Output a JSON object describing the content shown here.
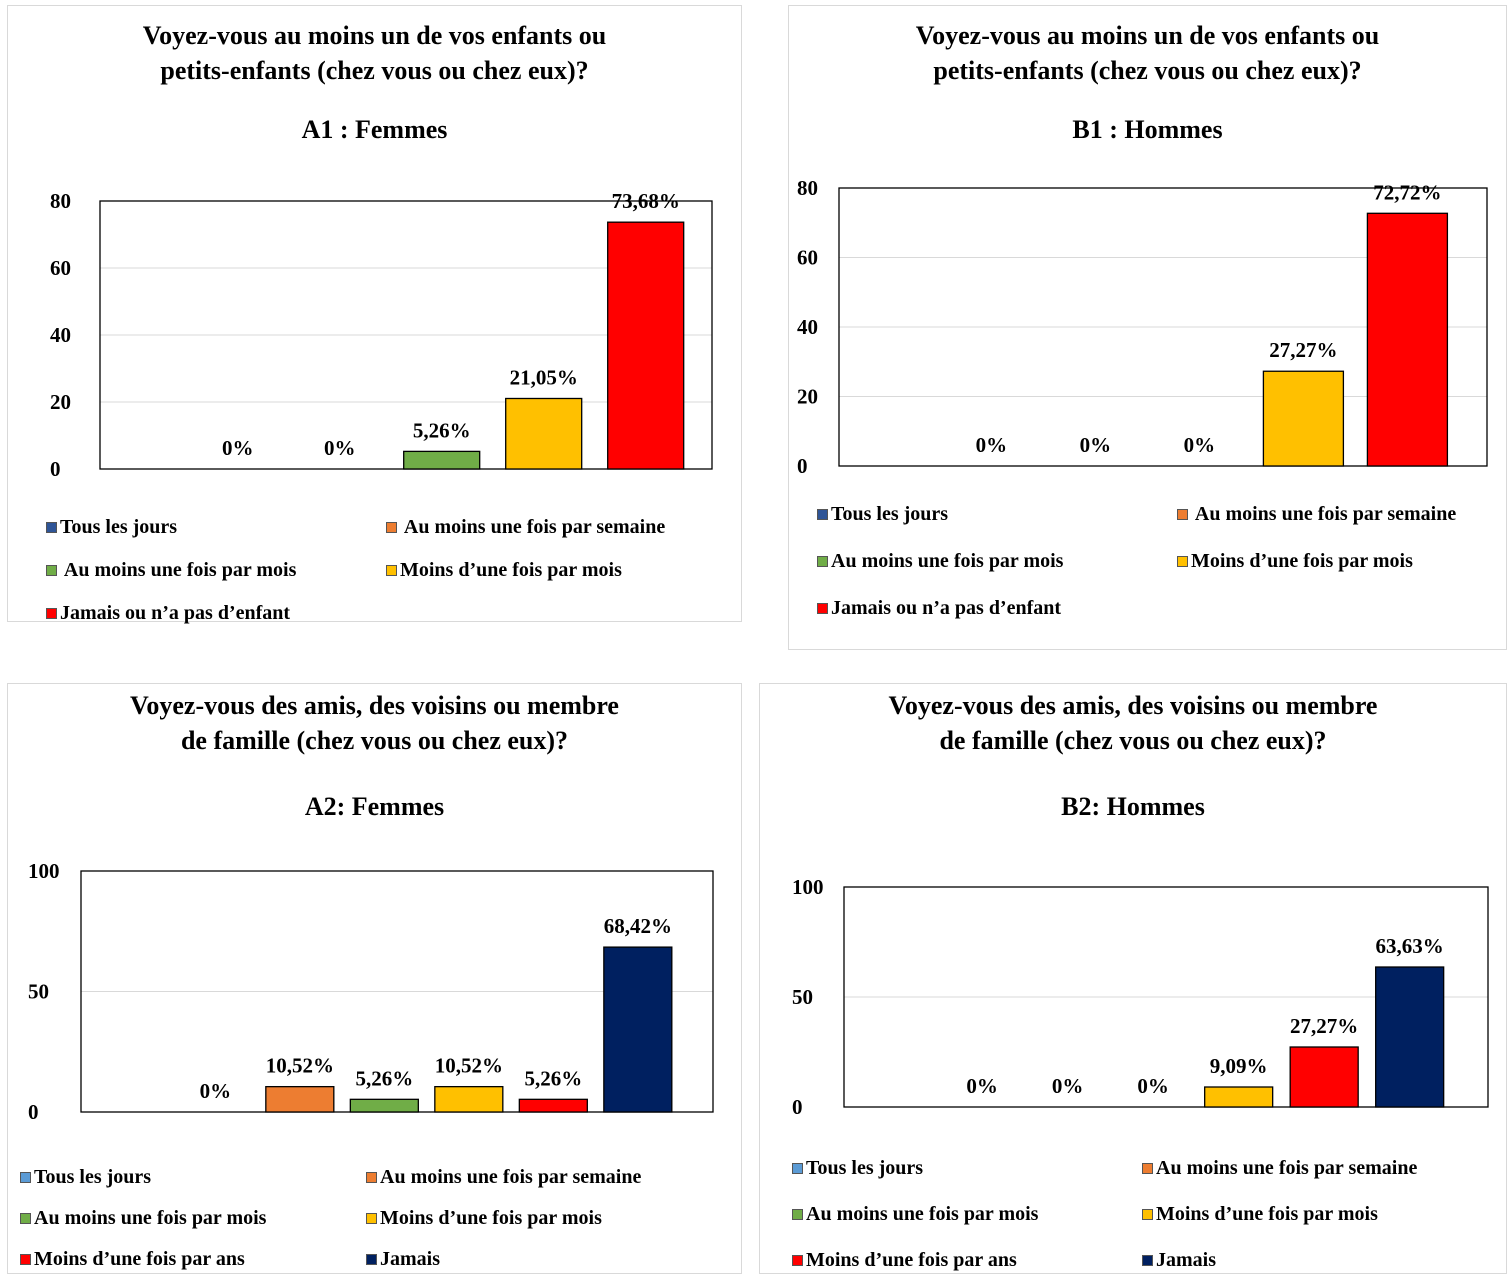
{
  "chart_data": [
    {
      "type": "bar",
      "title_lines": [
        "Voyez-vous au moins un de vos enfants ou",
        "petits-enfants (chez vous ou chez eux)?"
      ],
      "subtitle": "A1 : Femmes",
      "categories": [
        "Tous les jours",
        " Au moins une fois par semaine",
        " Au moins une fois par mois",
        "Moins d’une fois par mois",
        "Jamais ou n’a pas d’enfant"
      ],
      "values": [
        0,
        0,
        5.26,
        21.05,
        73.68
      ],
      "labels": [
        "0%",
        "0%",
        "5,26%",
        "21,05%",
        "73,68%"
      ],
      "colors": [
        "#2F5597",
        "#ED7D31",
        "#70AD47",
        "#FFC000",
        "#FF0000"
      ],
      "yticks": [
        "0",
        "20",
        "40",
        "60",
        "80"
      ],
      "ylim": [
        0,
        80
      ],
      "grid": true
    },
    {
      "type": "bar",
      "title_lines": [
        "Voyez-vous au moins un de vos enfants ou",
        "petits-enfants (chez vous ou chez eux)?"
      ],
      "subtitle": "B1 : Hommes",
      "categories": [
        "Tous les jours",
        " Au moins une fois par semaine",
        "Au moins une fois par mois",
        "Moins d’une fois par mois",
        "Jamais ou n’a pas d’enfant"
      ],
      "values": [
        0,
        0,
        0,
        27.27,
        72.72
      ],
      "labels": [
        "0%",
        "0%",
        "0%",
        "27,27%",
        "72,72%"
      ],
      "colors": [
        "#2F5597",
        "#ED7D31",
        "#70AD47",
        "#FFC000",
        "#FF0000"
      ],
      "yticks": [
        "0",
        "20",
        "40",
        "60",
        "80"
      ],
      "ylim": [
        0,
        80
      ],
      "grid": true
    },
    {
      "type": "bar",
      "title_lines": [
        "Voyez-vous des amis, des voisins ou membre",
        "de famille (chez vous ou chez eux)?"
      ],
      "subtitle": "A2: Femmes",
      "categories": [
        "Tous les jours",
        "Au moins une fois par semaine",
        "Au moins une fois par mois",
        "Moins d’une fois par mois",
        "Moins d’une fois par ans",
        "Jamais"
      ],
      "values": [
        0,
        10.52,
        5.26,
        10.52,
        5.26,
        68.42
      ],
      "labels": [
        "0%",
        "10,52%",
        "5,26%",
        "10,52%",
        "5,26%",
        "68,42%"
      ],
      "colors": [
        "#5B9BD5",
        "#ED7D31",
        "#70AD47",
        "#FFC000",
        "#FF0000",
        "#002060"
      ],
      "yticks": [
        "0",
        "50",
        "100"
      ],
      "ylim": [
        0,
        100
      ],
      "grid": true
    },
    {
      "type": "bar",
      "title_lines": [
        "Voyez-vous des amis, des voisins ou membre",
        "de famille (chez vous ou chez eux)?"
      ],
      "subtitle": "B2: Hommes",
      "categories": [
        "Tous les jours",
        "Au moins une fois par semaine",
        "Au moins une fois par mois",
        "Moins d’une fois par mois",
        "Moins d’une fois par ans",
        "Jamais"
      ],
      "values": [
        0,
        0,
        0,
        9.09,
        27.27,
        63.63
      ],
      "labels": [
        "0%",
        "0%",
        "0%",
        "9,09%",
        "27,27%",
        "63,63%"
      ],
      "colors": [
        "#5B9BD5",
        "#ED7D31",
        "#70AD47",
        "#FFC000",
        "#FF0000",
        "#002060"
      ],
      "yticks": [
        "0",
        "50",
        "100"
      ],
      "ylim": [
        0,
        100
      ],
      "grid": true
    }
  ]
}
